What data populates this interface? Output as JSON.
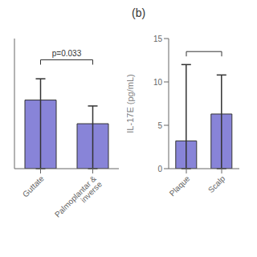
{
  "chart_data": [
    {
      "type": "bar",
      "categories": [
        "Guttate",
        "Palmoplantar & inverse"
      ],
      "values": [
        5.8,
        3.8
      ],
      "errors_upper": [
        1.8,
        1.5
      ],
      "errors_lower": [
        5.8,
        3.8
      ],
      "ylim": [
        0,
        11
      ],
      "tick_labels": "x",
      "color": "#8884d8",
      "significance": {
        "y": 9.2,
        "text": "p=0.033"
      }
    },
    {
      "type": "bar",
      "title": "(b)",
      "categories": [
        "Plaque",
        "Scalp"
      ],
      "values": [
        3.2,
        6.3
      ],
      "errors_upper": [
        8.8,
        4.5
      ],
      "errors_lower": [
        3.2,
        6.3
      ],
      "ylabel": "IL-17E (pg/mL)",
      "ylim": [
        0,
        15
      ],
      "yticks": [
        0,
        5,
        10,
        15
      ],
      "color": "#8884d8",
      "significance": {
        "y": 13.5
      }
    }
  ]
}
